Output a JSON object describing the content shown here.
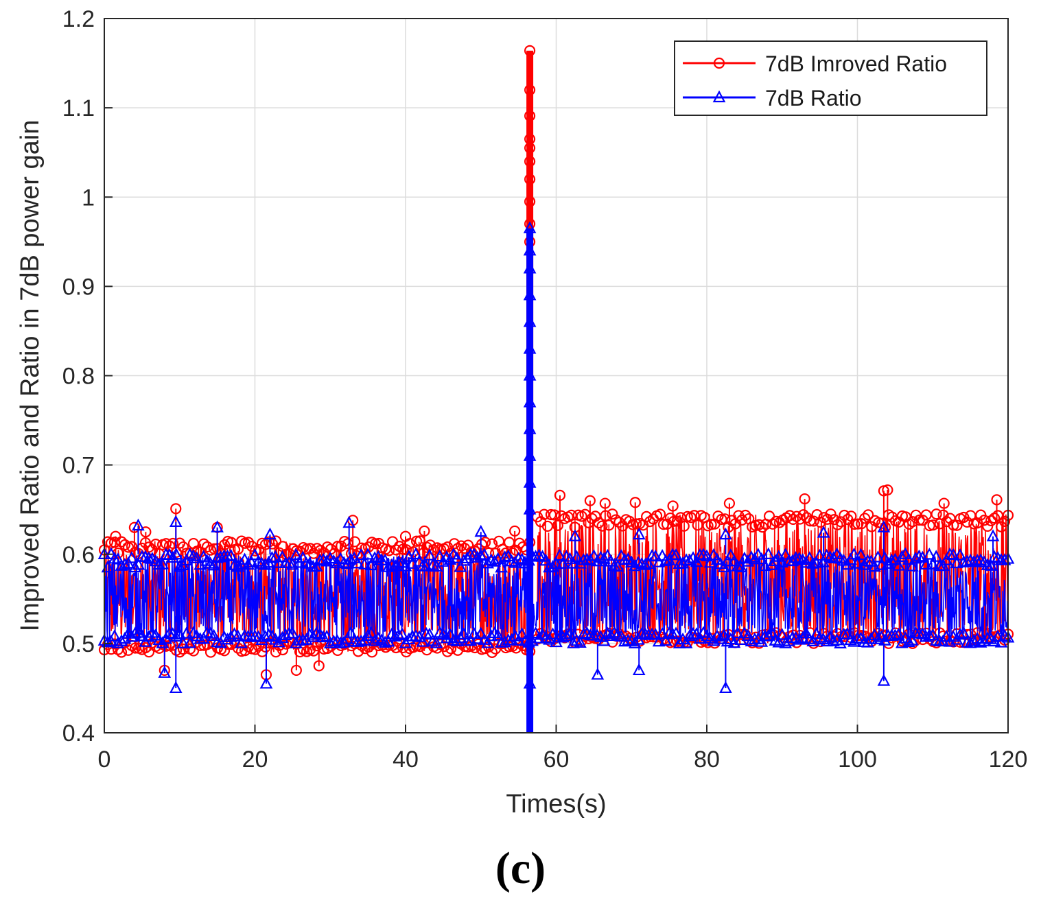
{
  "panel_label": "(c)",
  "colors": {
    "improved": "#ff0000",
    "ratio": "#0000ff",
    "grid": "#dcdcdc",
    "axis": "#262626"
  },
  "chart_data": {
    "type": "line",
    "title": "",
    "xlabel": "Times(s)",
    "ylabel": "Improved Ratio and Ratio in 7dB power gain",
    "xlim": [
      0,
      120
    ],
    "ylim": [
      0.4,
      1.2
    ],
    "xticks": [
      0,
      20,
      40,
      60,
      80,
      100,
      120
    ],
    "xtick_labels": [
      "0",
      "20",
      "40",
      "60",
      "80",
      "100",
      "120"
    ],
    "yticks": [
      0.4,
      0.5,
      0.6,
      0.7,
      0.8,
      0.9,
      1.0,
      1.1,
      1.2
    ],
    "ytick_labels": [
      "0.4",
      "0.5",
      "0.6",
      "0.7",
      "0.8",
      "0.9",
      "1",
      "1.1",
      "1.2"
    ],
    "grid": true,
    "legend_position": "top-right",
    "series": [
      {
        "name": "7dB Imroved Ratio",
        "color": "#ff0000",
        "marker": "circle",
        "bands": [
          {
            "x_start": 0,
            "x_end": 56.5,
            "low": 0.49,
            "high": 0.615
          },
          {
            "x_start": 57.5,
            "x_end": 120,
            "low": 0.5,
            "high": 0.645
          }
        ],
        "upper_outliers": [
          {
            "x": 1.5,
            "y": 0.62
          },
          {
            "x": 4,
            "y": 0.63
          },
          {
            "x": 5.5,
            "y": 0.625
          },
          {
            "x": 9.5,
            "y": 0.651
          },
          {
            "x": 15,
            "y": 0.63
          },
          {
            "x": 33,
            "y": 0.638
          },
          {
            "x": 40,
            "y": 0.62
          },
          {
            "x": 42.5,
            "y": 0.626
          },
          {
            "x": 54.5,
            "y": 0.626
          },
          {
            "x": 60.5,
            "y": 0.666
          },
          {
            "x": 64.5,
            "y": 0.66
          },
          {
            "x": 66.5,
            "y": 0.657
          },
          {
            "x": 70.5,
            "y": 0.658
          },
          {
            "x": 75.5,
            "y": 0.654
          },
          {
            "x": 83,
            "y": 0.657
          },
          {
            "x": 93,
            "y": 0.662
          },
          {
            "x": 103.5,
            "y": 0.671
          },
          {
            "x": 104,
            "y": 0.672
          },
          {
            "x": 111.5,
            "y": 0.657
          },
          {
            "x": 118.5,
            "y": 0.661
          }
        ],
        "lower_outliers": [
          {
            "x": 8,
            "y": 0.47
          },
          {
            "x": 21.5,
            "y": 0.465
          },
          {
            "x": 25.5,
            "y": 0.47
          },
          {
            "x": 28.5,
            "y": 0.475
          }
        ],
        "spike": {
          "x": 56.5,
          "peak": 1.164,
          "points": [
            1.164,
            1.12,
            1.091,
            1.065,
            1.055,
            1.04,
            1.02,
            0.995,
            0.97,
            0.95
          ]
        }
      },
      {
        "name": "7dB Ratio",
        "color": "#0000ff",
        "marker": "triangle",
        "bands": [
          {
            "x_start": 0,
            "x_end": 120,
            "low": 0.5,
            "high": 0.6
          }
        ],
        "upper_outliers": [
          {
            "x": 4.5,
            "y": 0.632
          },
          {
            "x": 9.5,
            "y": 0.636
          },
          {
            "x": 15,
            "y": 0.63
          },
          {
            "x": 22,
            "y": 0.622
          },
          {
            "x": 32.5,
            "y": 0.635
          },
          {
            "x": 50,
            "y": 0.625
          },
          {
            "x": 62.5,
            "y": 0.62
          },
          {
            "x": 71,
            "y": 0.622
          },
          {
            "x": 82.5,
            "y": 0.622
          },
          {
            "x": 95.5,
            "y": 0.624
          },
          {
            "x": 103.5,
            "y": 0.63
          },
          {
            "x": 118,
            "y": 0.62
          }
        ],
        "lower_outliers": [
          {
            "x": 8,
            "y": 0.467
          },
          {
            "x": 9.5,
            "y": 0.45
          },
          {
            "x": 21.5,
            "y": 0.455
          },
          {
            "x": 56.5,
            "y": 0.455
          },
          {
            "x": 65.5,
            "y": 0.465
          },
          {
            "x": 71,
            "y": 0.47
          },
          {
            "x": 82.5,
            "y": 0.45
          },
          {
            "x": 103.5,
            "y": 0.458
          }
        ],
        "spike": {
          "x": 56.5,
          "peak": 0.965,
          "min": 0.4,
          "points": [
            0.965,
            0.94,
            0.92,
            0.89,
            0.86,
            0.83,
            0.8,
            0.77,
            0.74,
            0.71,
            0.68,
            0.65
          ]
        }
      }
    ]
  }
}
